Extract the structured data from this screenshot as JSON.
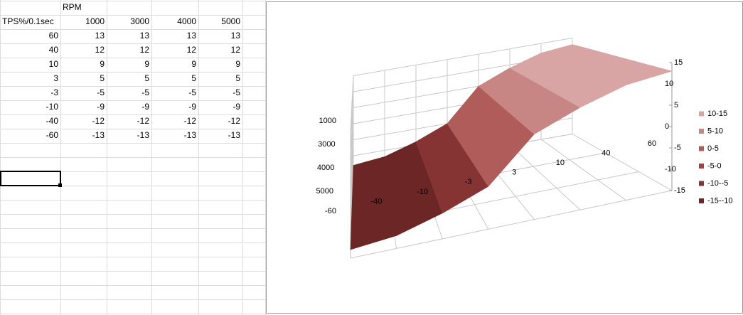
{
  "sheet": {
    "header": "RPM",
    "corner": "TPS%/0.1sec",
    "columns": [
      1000,
      3000,
      4000,
      5000
    ],
    "rows": [
      {
        "label": 60,
        "values": [
          13,
          13,
          13,
          13
        ]
      },
      {
        "label": 40,
        "values": [
          12,
          12,
          12,
          12
        ]
      },
      {
        "label": 10,
        "values": [
          9,
          9,
          9,
          9
        ]
      },
      {
        "label": 3,
        "values": [
          5,
          5,
          5,
          5
        ]
      },
      {
        "label": -3,
        "values": [
          -5,
          -5,
          -5,
          -5
        ]
      },
      {
        "label": -10,
        "values": [
          -9,
          -9,
          -9,
          -9
        ]
      },
      {
        "label": -40,
        "values": [
          -12,
          -12,
          -12,
          -12
        ]
      },
      {
        "label": -60,
        "values": [
          -13,
          -13,
          -13,
          -13
        ]
      }
    ]
  },
  "chart_data": {
    "type": "surface",
    "categories": [
      -60,
      -40,
      -10,
      -3,
      3,
      10,
      40,
      60
    ],
    "series": [
      {
        "name": 1000,
        "values": [
          -13,
          -12,
          -9,
          -5,
          5,
          9,
          12,
          13
        ]
      },
      {
        "name": 3000,
        "values": [
          -13,
          -12,
          -9,
          -5,
          5,
          9,
          12,
          13
        ]
      },
      {
        "name": 4000,
        "values": [
          -13,
          -12,
          -9,
          -5,
          5,
          9,
          12,
          13
        ]
      },
      {
        "name": 5000,
        "values": [
          -13,
          -12,
          -9,
          -5,
          5,
          9,
          12,
          13
        ]
      }
    ],
    "zlim": [
      -15,
      15
    ],
    "zticks": [
      15,
      10,
      5,
      0,
      -5,
      -10,
      -15
    ],
    "legend": [
      {
        "label": "10-15",
        "color": "#d9a4a4"
      },
      {
        "label": "5-10",
        "color": "#c78684"
      },
      {
        "label": "0-5",
        "color": "#b05c5a"
      },
      {
        "label": "-5-0",
        "color": "#9a4644"
      },
      {
        "label": "-10--5",
        "color": "#853433"
      },
      {
        "label": "-15--10",
        "color": "#6b2625"
      }
    ]
  }
}
